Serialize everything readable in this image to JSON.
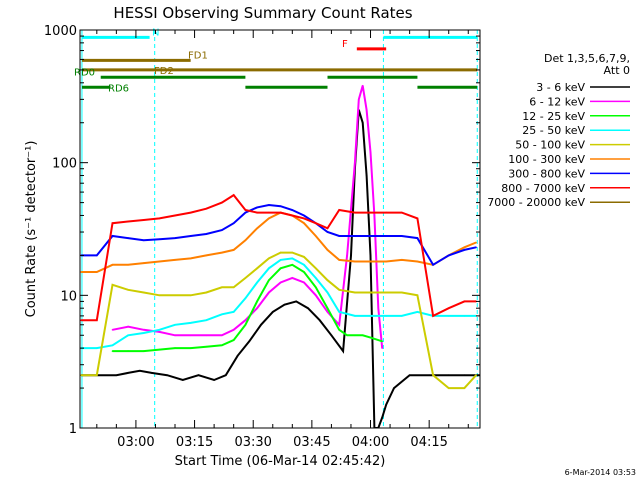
{
  "chart_data": {
    "type": "line",
    "title": "HESSI Observing Summary Count Rates",
    "xlabel": "Start Time (06-Mar-14 02:45:42)",
    "ylabel": "Count Rate (s⁻¹ detector⁻¹)",
    "y_scale": "log",
    "ylim": [
      1,
      1000
    ],
    "xlim_minutes": [
      165.7,
      268.0
    ],
    "x_tick_labels": [
      "03:00",
      "03:15",
      "03:30",
      "03:45",
      "04:00",
      "04:15"
    ],
    "x_tick_minutes": [
      180,
      195,
      210,
      225,
      240,
      255
    ],
    "y_tick_labels": [
      "1",
      "10",
      "100",
      "1000"
    ],
    "y_tick_values": [
      1,
      10,
      100,
      1000
    ],
    "vlines_minutes": [
      166.2,
      184.8,
      243.3,
      267.3
    ],
    "grid": false,
    "legend_title": "Det 1,3,5,6,7,9, Att 0",
    "legend_title_lines": [
      "Det 1,3,5,6,7,9,",
      "Att 0"
    ],
    "legend_placement": "right",
    "series": [
      {
        "name": "3 - 6 keV",
        "color": "#000000",
        "x": [
          166,
          170,
          175,
          178,
          181,
          184,
          188,
          192,
          196,
          200,
          203,
          206,
          209,
          212,
          215,
          218,
          221,
          224,
          227,
          230,
          233,
          235,
          236,
          237,
          238,
          239,
          240,
          241,
          242,
          243,
          244,
          246,
          250,
          255,
          260,
          264,
          268
        ],
        "y": [
          2.5,
          2.5,
          2.5,
          2.6,
          2.7,
          2.6,
          2.5,
          2.3,
          2.5,
          2.3,
          2.5,
          3.5,
          4.5,
          6.0,
          7.5,
          8.5,
          9.0,
          8.0,
          6.5,
          5.0,
          3.8,
          20,
          90,
          250,
          200,
          80,
          20,
          1.0,
          1.0,
          1.2,
          1.5,
          2.0,
          2.5,
          2.5,
          2.5,
          2.5,
          2.5
        ]
      },
      {
        "name": "6 - 12 keV",
        "color": "#ff00ff",
        "x": [
          174,
          178,
          182,
          186,
          190,
          194,
          198,
          202,
          205,
          208,
          211,
          214,
          217,
          220,
          223,
          226,
          229,
          232,
          234,
          236,
          237,
          238,
          239,
          240,
          241,
          242,
          243
        ],
        "y": [
          5.5,
          5.8,
          5.5,
          5.3,
          5.0,
          5.0,
          5.0,
          5.0,
          5.5,
          6.5,
          8.0,
          10.5,
          12.5,
          13.5,
          12.5,
          10.0,
          7.5,
          6.0,
          20,
          100,
          300,
          380,
          250,
          120,
          40,
          8,
          4
        ]
      },
      {
        "name": "12 - 25 keV",
        "color": "#00ff00",
        "x": [
          174,
          178,
          182,
          186,
          190,
          194,
          198,
          202,
          205,
          208,
          211,
          214,
          217,
          220,
          223,
          226,
          229,
          232,
          234,
          236,
          238,
          240,
          243
        ],
        "y": [
          3.8,
          3.8,
          3.8,
          3.9,
          4.0,
          4.0,
          4.1,
          4.2,
          4.6,
          6.0,
          9.0,
          13.0,
          16.0,
          17.0,
          15.0,
          11.5,
          8.0,
          5.5,
          5.0,
          5.0,
          5.0,
          4.8,
          4.5
        ]
      },
      {
        "name": "25 - 50 keV",
        "color": "#00ffff",
        "x": [
          166,
          170,
          174,
          178,
          182,
          186,
          190,
          194,
          198,
          202,
          205,
          208,
          211,
          214,
          217,
          220,
          223,
          226,
          229,
          232,
          236,
          240,
          244,
          248,
          252,
          256,
          260,
          264,
          267
        ],
        "y": [
          4.0,
          4.0,
          4.2,
          5.0,
          5.2,
          5.5,
          6.0,
          6.2,
          6.5,
          7.2,
          7.5,
          9.5,
          12.5,
          16.0,
          18.5,
          19.0,
          17.0,
          13.5,
          10.5,
          7.5,
          7.0,
          7.0,
          7.0,
          7.0,
          7.5,
          7.0,
          7.0,
          7.0,
          7.0
        ]
      },
      {
        "name": "50 - 100 keV",
        "color": "#cccc00",
        "x": [
          166,
          170,
          174,
          178,
          182,
          186,
          190,
          194,
          198,
          202,
          205,
          208,
          211,
          214,
          217,
          220,
          223,
          226,
          229,
          232,
          236,
          240,
          244,
          248,
          252,
          256,
          260,
          264,
          267
        ],
        "y": [
          2.5,
          2.5,
          12.0,
          11.0,
          10.5,
          10.0,
          10.0,
          10.0,
          10.5,
          11.5,
          11.5,
          13.5,
          16.0,
          19.0,
          21.0,
          21.0,
          19.5,
          16.0,
          13.0,
          11.0,
          10.5,
          10.5,
          10.5,
          10.5,
          10.0,
          2.5,
          2.0,
          2.0,
          2.5
        ]
      },
      {
        "name": "100 - 300 keV",
        "color": "#ff8000",
        "x": [
          166,
          170,
          174,
          178,
          182,
          186,
          190,
          194,
          198,
          202,
          205,
          208,
          211,
          214,
          217,
          220,
          223,
          226,
          229,
          232,
          236,
          240,
          244,
          248,
          252,
          256,
          260,
          264,
          267
        ],
        "y": [
          15.0,
          15.0,
          17.0,
          17.0,
          17.5,
          18.0,
          18.5,
          19.0,
          20.0,
          21.0,
          22.0,
          26.0,
          32.0,
          38.0,
          42.0,
          40.0,
          35.0,
          28.0,
          22.0,
          18.5,
          18.0,
          18.0,
          18.0,
          18.5,
          18.0,
          17.0,
          20.0,
          23.0,
          25.0
        ]
      },
      {
        "name": "300 - 800 keV",
        "color": "#0000ff",
        "x": [
          166,
          170,
          174,
          178,
          182,
          186,
          190,
          194,
          198,
          202,
          205,
          208,
          211,
          214,
          217,
          220,
          223,
          226,
          229,
          232,
          236,
          240,
          244,
          248,
          252,
          256,
          260,
          264,
          267
        ],
        "y": [
          20.0,
          20.0,
          28.0,
          27.0,
          26.0,
          26.5,
          27.0,
          28.0,
          29.0,
          31.0,
          35.0,
          42.0,
          46.0,
          48.0,
          47.0,
          44.0,
          40.0,
          35.0,
          30.0,
          28.0,
          28.0,
          28.0,
          28.0,
          28.0,
          27.0,
          17.0,
          20.0,
          22.0,
          23.0
        ]
      },
      {
        "name": "800 - 7000 keV",
        "color": "#ff0000",
        "x": [
          166,
          170,
          174,
          178,
          182,
          186,
          190,
          194,
          198,
          202,
          205,
          208,
          211,
          214,
          217,
          220,
          223,
          226,
          229,
          232,
          236,
          240,
          244,
          248,
          252,
          256,
          260,
          264,
          267
        ],
        "y": [
          6.5,
          6.5,
          35.0,
          36.0,
          37.0,
          38.0,
          40.0,
          42.0,
          45.0,
          50.0,
          57.0,
          44.0,
          42.0,
          42.0,
          42.0,
          40.0,
          38.0,
          35.0,
          32.0,
          44.0,
          42.0,
          42.0,
          42.0,
          42.0,
          38.0,
          7.0,
          8.0,
          9.0,
          9.0
        ]
      },
      {
        "name": "7000 - 20000 keV",
        "color": "#8b6b00",
        "x": [],
        "y": []
      }
    ],
    "annotations": [
      {
        "label": "N",
        "color": "#00ffff",
        "segments_minutes": [
          [
            166.2,
            183.5
          ],
          [
            243.3,
            267.3
          ]
        ],
        "y": 880
      },
      {
        "label": "F",
        "color": "#ff0000",
        "segments_minutes": [
          [
            236.5,
            244.0
          ]
        ],
        "y": 720
      },
      {
        "label": "FD1",
        "color": "#8b6b00",
        "segments_minutes": [
          [
            166.2,
            194.0
          ]
        ],
        "y": 590
      },
      {
        "label": "FD2",
        "color": "#8b6b00",
        "segments_minutes": [
          [
            166.2,
            267.3
          ]
        ],
        "y": 500
      },
      {
        "label": "RD0",
        "color": "#008000",
        "segments_minutes": [
          [
            171.0,
            208.0
          ],
          [
            229.0,
            252.0
          ]
        ],
        "y": 440
      },
      {
        "label": "RD6",
        "color": "#008000",
        "segments_minutes": [
          [
            166.2,
            173.5
          ],
          [
            208.0,
            229.0
          ],
          [
            252.0,
            267.3
          ]
        ],
        "y": 370
      }
    ]
  },
  "footer": {
    "timestamp": "6-Mar-2014 03:53"
  }
}
